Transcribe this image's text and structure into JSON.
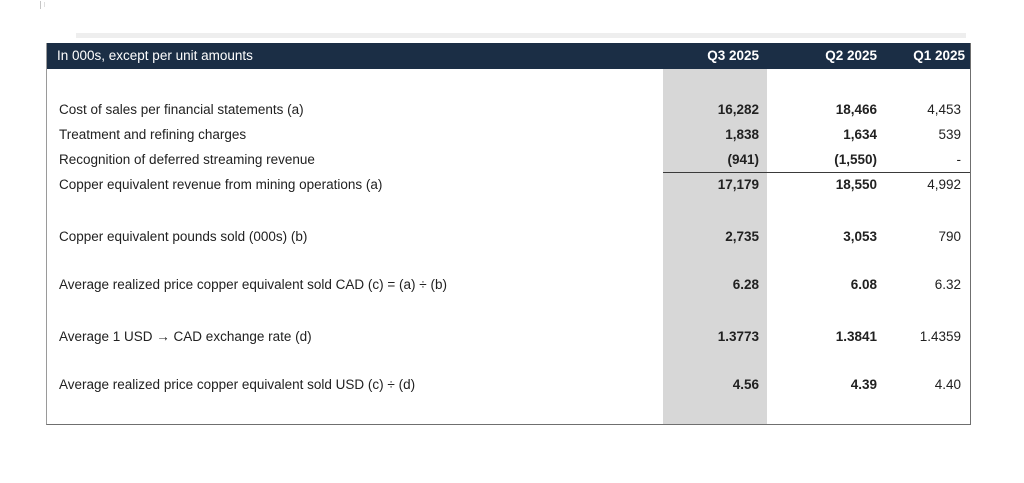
{
  "colors": {
    "header_bg": "#1b2e45",
    "header_text": "#ffffff",
    "highlight_column_bg": "#d7d7d7",
    "body_text": "#212121",
    "table_border": "#6f6f6f",
    "subtotal_rule": "#3a3a3a"
  },
  "table": {
    "title_cell": "In 000s, except per unit amounts",
    "columns": [
      {
        "label": "Q3 2025",
        "highlighted": true
      },
      {
        "label": "Q2 2025",
        "highlighted": false
      },
      {
        "label": "Q1 2025",
        "highlighted": false
      }
    ],
    "sections": [
      {
        "rows": [
          {
            "label": "Cost of sales per financial statements (a)",
            "values": [
              "16,282",
              "18,466",
              "4,453"
            ],
            "rule_below": false
          },
          {
            "label": "Treatment and refining charges",
            "values": [
              "1,838",
              "1,634",
              "539"
            ],
            "rule_below": false
          },
          {
            "label": "Recognition of deferred streaming revenue",
            "values": [
              "(941)",
              "(1,550)",
              "-"
            ],
            "rule_below": true
          },
          {
            "label": "Copper equivalent revenue from mining operations (a)",
            "values": [
              "17,179",
              "18,550",
              "4,992"
            ],
            "rule_below": false
          }
        ]
      },
      {
        "rows": [
          {
            "label": "Copper equivalent pounds sold (000s) (b)",
            "values": [
              "2,735",
              "3,053",
              "790"
            ],
            "rule_below": false
          }
        ]
      },
      {
        "rows": [
          {
            "label": "Average realized price copper equivalent sold CAD (c) = (a) ÷ (b)",
            "values": [
              "6.28",
              "6.08",
              "6.32"
            ],
            "rule_below": false
          }
        ]
      },
      {
        "rows": [
          {
            "label": "Average 1 USD → CAD exchange rate (d)",
            "values": [
              "1.3773",
              "1.3841",
              "1.4359"
            ],
            "rule_below": false
          }
        ]
      },
      {
        "rows": [
          {
            "label": "Average realized price copper equivalent sold USD (c) ÷ (d)",
            "values": [
              "4.56",
              "4.39",
              "4.40"
            ],
            "rule_below": false
          }
        ]
      }
    ]
  }
}
